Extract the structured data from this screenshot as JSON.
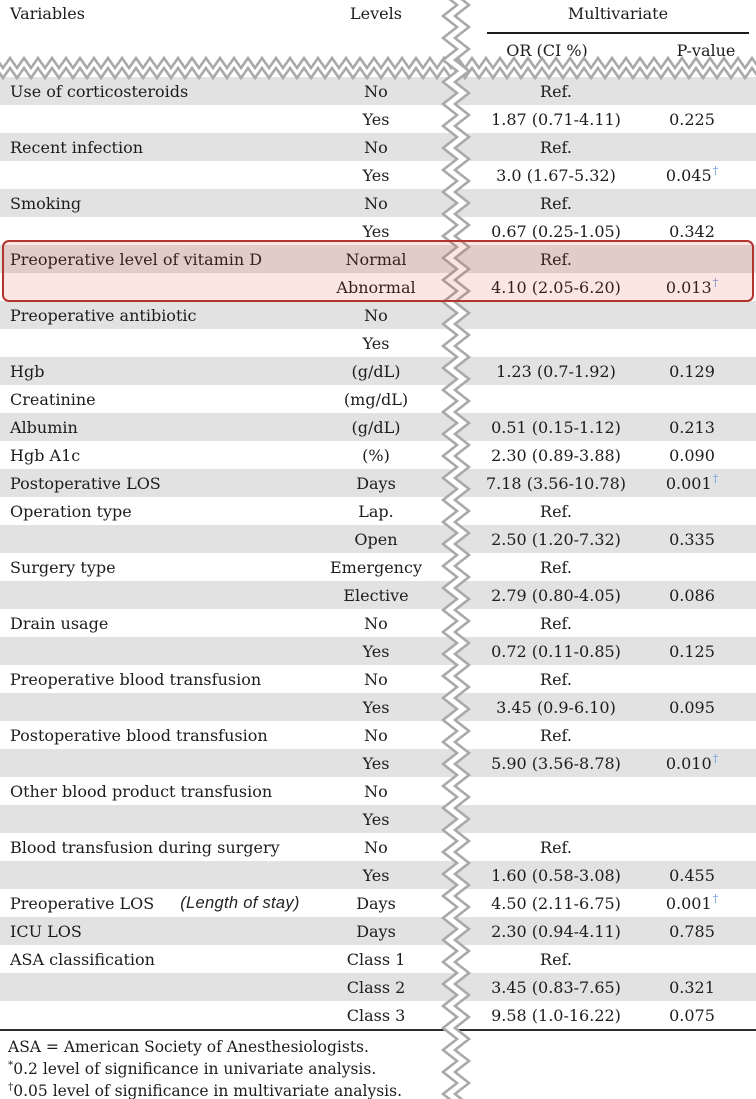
{
  "header": {
    "col_variables": "Variables",
    "col_levels": "Levels",
    "group_multivariate": "Multivariate",
    "col_or": "OR (CI %)",
    "col_p": "P-value"
  },
  "table": {
    "rows": [
      {
        "variable": "Use of corticosteroids",
        "level": "No",
        "or": "Ref.",
        "p": ""
      },
      {
        "variable": "",
        "level": "Yes",
        "or": "1.87 (0.71-4.11)",
        "p": "0.225"
      },
      {
        "variable": "Recent infection",
        "level": "No",
        "or": "Ref.",
        "p": ""
      },
      {
        "variable": "",
        "level": "Yes",
        "or": "3.0 (1.67-5.32)",
        "p": "0.045",
        "p_sup": "†"
      },
      {
        "variable": "Smoking",
        "level": "No",
        "or": "Ref.",
        "p": ""
      },
      {
        "variable": "",
        "level": "Yes",
        "or": "0.67 (0.25-1.05)",
        "p": "0.342"
      },
      {
        "variable": "Preoperative level of vitamin D",
        "level": "Normal",
        "or": "Ref.",
        "p": "",
        "highlight": true
      },
      {
        "variable": "",
        "level": "Abnormal",
        "or": "4.10 (2.05-6.20)",
        "p": "0.013",
        "p_sup": "†",
        "highlight": true
      },
      {
        "variable": "Preoperative antibiotic",
        "level": "No",
        "or": "",
        "p": ""
      },
      {
        "variable": "",
        "level": "Yes",
        "or": "",
        "p": ""
      },
      {
        "variable": "Hgb",
        "level": "(g/dL)",
        "or": "1.23 (0.7-1.92)",
        "p": "0.129"
      },
      {
        "variable": "Creatinine",
        "level": "(mg/dL)",
        "or": "",
        "p": ""
      },
      {
        "variable": "Albumin",
        "level": "(g/dL)",
        "or": "0.51 (0.15-1.12)",
        "p": "0.213"
      },
      {
        "variable": "Hgb A1c",
        "level": "(%)",
        "or": "2.30 (0.89-3.88)",
        "p": "0.090"
      },
      {
        "variable": "Postoperative LOS",
        "level": "Days",
        "or": "7.18 (3.56-10.78)",
        "p": "0.001",
        "p_sup": "†"
      },
      {
        "variable": "Operation type",
        "level": "Lap.",
        "or": "Ref.",
        "p": ""
      },
      {
        "variable": "",
        "level": "Open",
        "or": "2.50 (1.20-7.32)",
        "p": "0.335"
      },
      {
        "variable": "Surgery type",
        "level": "Emergency",
        "or": "Ref.",
        "p": ""
      },
      {
        "variable": "",
        "level": "Elective",
        "or": "2.79 (0.80-4.05)",
        "p": "0.086"
      },
      {
        "variable": "Drain usage",
        "level": "No",
        "or": "Ref.",
        "p": ""
      },
      {
        "variable": "",
        "level": "Yes",
        "or": "0.72 (0.11-0.85)",
        "p": "0.125"
      },
      {
        "variable": "Preoperative blood transfusion",
        "level": "No",
        "or": "Ref.",
        "p": ""
      },
      {
        "variable": "",
        "level": "Yes",
        "or": "3.45 (0.9-6.10)",
        "p": "0.095"
      },
      {
        "variable": "Postoperative blood transfusion",
        "level": "No",
        "or": "Ref.",
        "p": ""
      },
      {
        "variable": "",
        "level": "Yes",
        "or": "5.90 (3.56-8.78)",
        "p": "0.010",
        "p_sup": "†"
      },
      {
        "variable": "Other blood product transfusion",
        "level": "No",
        "or": "",
        "p": ""
      },
      {
        "variable": "",
        "level": "Yes",
        "or": "",
        "p": ""
      },
      {
        "variable": "Blood transfusion during surgery",
        "level": "No",
        "or": "Ref.",
        "p": ""
      },
      {
        "variable": "",
        "level": "Yes",
        "or": "1.60 (0.58-3.08)",
        "p": "0.455"
      },
      {
        "variable": "Preoperative LOS",
        "annotation": "(Length of stay)",
        "level": "Days",
        "or": "4.50 (2.11-6.75)",
        "p": "0.001",
        "p_sup": "†"
      },
      {
        "variable": "ICU LOS",
        "level": "Days",
        "or": "2.30 (0.94-4.11)",
        "p": "0.785"
      },
      {
        "variable": "ASA classification",
        "level": "Class 1",
        "or": "Ref.",
        "p": ""
      },
      {
        "variable": "",
        "level": "Class 2",
        "or": "3.45 (0.83-7.65)",
        "p": "0.321"
      },
      {
        "variable": "",
        "level": "Class 3",
        "or": "9.58 (1.0-16.22)",
        "p": "0.075"
      }
    ]
  },
  "footnotes": [
    {
      "sup": "",
      "text": "ASA = American Society of Anesthesiologists."
    },
    {
      "sup": "*",
      "text": "0.2 level of significance in univariate analysis."
    },
    {
      "sup": "†",
      "text": "0.05 level of significance in multivariate analysis."
    }
  ],
  "colors": {
    "row_shade": "#e2e2e2",
    "rule_dark": "#1c1c1c",
    "dagger_blue": "#6fa0d8",
    "highlight_border": "#b3342c",
    "highlight_fill": "rgba(222,60,48,0.13)",
    "torn_edge_gray": "#a9a9a9"
  }
}
